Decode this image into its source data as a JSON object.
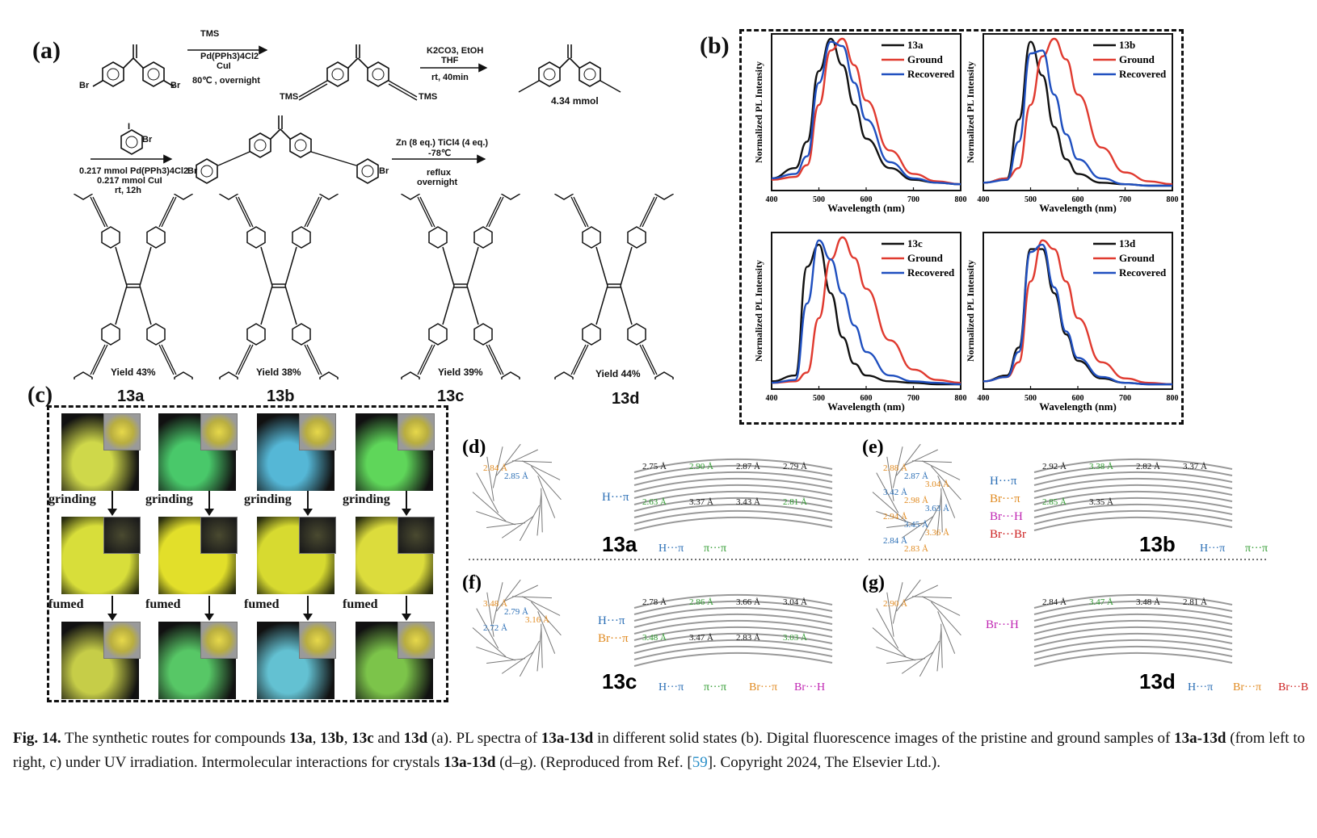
{
  "panel_a": {
    "label": "(a)",
    "step1": {
      "reagent_top": "TMS",
      "reagent": "Pd(PPh3)4Cl2",
      "reagent2": "CuI",
      "cond": "80℃ ,  overnight"
    },
    "step2": {
      "reagent": "K2CO3, EtOH",
      "reagent2": "THF",
      "cond": "rt, 40min"
    },
    "product_amount": "4.34 mmol",
    "step3": {
      "reagent1": "0.217 mmol Pd(PPh3)4Cl2",
      "reagent2": "0.217 mmol CuI",
      "cond": "rt, 12h"
    },
    "step4": {
      "reagent": "Zn (8 eq.) TiCl4 (4 eq.)",
      "temp": "-78℃",
      "cond1": "reflux",
      "cond2": "overnight"
    },
    "br": "Br",
    "tms": "TMS",
    "iodo": "I",
    "compounds": [
      {
        "name": "13a",
        "yield": "Yield 43%"
      },
      {
        "name": "13b",
        "yield": "Yield 38%"
      },
      {
        "name": "13c",
        "yield": "Yield 39%"
      },
      {
        "name": "13d",
        "yield": "Yield 44%"
      }
    ]
  },
  "panel_b": {
    "label": "(b)",
    "ylabel": "Normalized PL Intensity",
    "xlabel": "Wavelength (nm)",
    "xticks": [
      "400",
      "500",
      "600",
      "700",
      "800"
    ],
    "legend_ground": "Ground",
    "legend_recovered": "Recovered",
    "colors": {
      "pristine": "#111111",
      "ground": "#e03a2f",
      "recovered": "#1f4fbf"
    }
  },
  "chart_data": [
    {
      "type": "line",
      "title": "",
      "legend_name": "13a",
      "xlabel": "Wavelength (nm)",
      "ylabel": "Normalized PL Intensity",
      "xlim": [
        400,
        800
      ],
      "ylim": [
        0,
        1
      ],
      "x": [
        400,
        450,
        475,
        500,
        525,
        550,
        575,
        600,
        650,
        700,
        750,
        800
      ],
      "series": [
        {
          "name": "13a",
          "values": [
            0.05,
            0.12,
            0.3,
            0.78,
            1.0,
            0.82,
            0.55,
            0.32,
            0.12,
            0.04,
            0.02,
            0.01
          ]
        },
        {
          "name": "Ground",
          "values": [
            0.04,
            0.06,
            0.14,
            0.55,
            0.92,
            1.0,
            0.82,
            0.58,
            0.24,
            0.08,
            0.03,
            0.01
          ]
        },
        {
          "name": "Recovered",
          "values": [
            0.05,
            0.08,
            0.2,
            0.7,
            0.98,
            0.95,
            0.7,
            0.45,
            0.16,
            0.05,
            0.02,
            0.01
          ]
        }
      ]
    },
    {
      "type": "line",
      "title": "",
      "legend_name": "13b",
      "xlabel": "Wavelength (nm)",
      "ylabel": "Normalized PL Intensity",
      "xlim": [
        400,
        800
      ],
      "ylim": [
        0,
        1
      ],
      "x": [
        400,
        450,
        475,
        500,
        525,
        550,
        575,
        600,
        650,
        700,
        750,
        800
      ],
      "series": [
        {
          "name": "13b",
          "values": [
            0.02,
            0.05,
            0.45,
            0.98,
            0.75,
            0.4,
            0.18,
            0.08,
            0.02,
            0.01,
            0.0,
            0.0
          ]
        },
        {
          "name": "Ground",
          "values": [
            0.02,
            0.05,
            0.12,
            0.55,
            0.88,
            1.0,
            0.86,
            0.62,
            0.26,
            0.09,
            0.03,
            0.01
          ]
        },
        {
          "name": "Recovered",
          "values": [
            0.02,
            0.04,
            0.3,
            0.9,
            0.92,
            0.62,
            0.35,
            0.18,
            0.05,
            0.01,
            0.0,
            0.0
          ]
        }
      ]
    },
    {
      "type": "line",
      "title": "",
      "legend_name": "13c",
      "xlabel": "Wavelength (nm)",
      "ylabel": "Normalized PL Intensity",
      "xlim": [
        400,
        800
      ],
      "ylim": [
        0,
        1
      ],
      "x": [
        400,
        450,
        475,
        500,
        525,
        550,
        575,
        600,
        650,
        700,
        750,
        800
      ],
      "series": [
        {
          "name": "13c",
          "values": [
            0.02,
            0.06,
            0.8,
            0.95,
            0.62,
            0.32,
            0.14,
            0.06,
            0.02,
            0.01,
            0.0,
            0.0
          ]
        },
        {
          "name": "Ground",
          "values": [
            0.01,
            0.02,
            0.08,
            0.45,
            0.85,
            1.0,
            0.86,
            0.65,
            0.3,
            0.1,
            0.03,
            0.01
          ]
        },
        {
          "name": "Recovered",
          "values": [
            0.01,
            0.03,
            0.55,
            0.98,
            0.85,
            0.62,
            0.4,
            0.22,
            0.06,
            0.02,
            0.01,
            0.0
          ]
        }
      ]
    },
    {
      "type": "line",
      "title": "",
      "legend_name": "13d",
      "xlabel": "Wavelength (nm)",
      "ylabel": "Normalized PL Intensity",
      "xlim": [
        400,
        800
      ],
      "ylim": [
        0,
        1
      ],
      "x": [
        400,
        450,
        475,
        500,
        525,
        550,
        575,
        600,
        650,
        700,
        750,
        800
      ],
      "series": [
        {
          "name": "13d",
          "values": [
            0.02,
            0.06,
            0.25,
            0.92,
            0.92,
            0.62,
            0.34,
            0.16,
            0.04,
            0.01,
            0.0,
            0.0
          ]
        },
        {
          "name": "Ground",
          "values": [
            0.02,
            0.05,
            0.15,
            0.7,
            0.98,
            0.92,
            0.7,
            0.45,
            0.15,
            0.04,
            0.01,
            0.0
          ]
        },
        {
          "name": "Recovered",
          "values": [
            0.02,
            0.05,
            0.22,
            0.9,
            0.95,
            0.66,
            0.36,
            0.18,
            0.05,
            0.01,
            0.0,
            0.0
          ]
        }
      ]
    }
  ],
  "panel_c": {
    "label": "(c)",
    "grinding": "grinding",
    "fumed": "fumed",
    "colors": {
      "pristine": [
        "#cfd84a",
        "#49c86a",
        "#55b7d6",
        "#5fd65a"
      ],
      "ground": [
        "#d8de3a",
        "#e2df2a",
        "#d7da30",
        "#dcdc3c"
      ],
      "fumed": [
        "#c6cd48",
        "#57c766",
        "#63c1d2",
        "#7cc44a"
      ]
    }
  },
  "panel_d": {
    "label": "(d)",
    "compound": "13a",
    "distances_left": [
      "2.84 Å",
      "2.85 Å"
    ],
    "distances_right": [
      "2.75 Å",
      "2.90 Å",
      "2.87 Å",
      "2.79 Å",
      "2.63 Å",
      "3.37 Å",
      "3.43 Å",
      "2.81 Å"
    ],
    "legend_left": [
      "H···π"
    ],
    "legend_bottom": [
      "H···π",
      "π···π"
    ]
  },
  "panel_e": {
    "label": "(e)",
    "compound": "13b",
    "distances_left": [
      "2.88 Å",
      "2.87 Å",
      "3.04 Å",
      "3.42 Å",
      "2.98 Å",
      "3.63 Å",
      "2.94 Å",
      "3.45 Å",
      "3.36 Å",
      "2.84 Å",
      "2.83 Å"
    ],
    "distances_right": [
      "2.92 Å",
      "3.38 Å",
      "2.82 Å",
      "3.37 Å",
      "2.85 Å",
      "3.35 Å"
    ],
    "legend_side": [
      "H···π",
      "Br···π",
      "Br···H",
      "Br···Br"
    ],
    "legend_bottom": [
      "H···π",
      "π···π"
    ]
  },
  "panel_f": {
    "label": "(f)",
    "compound": "13c",
    "distances_left": [
      "3.48 Å",
      "2.79 Å",
      "3.16 Å",
      "2.72 Å"
    ],
    "distances_right": [
      "2.78 Å",
      "2.86 Å",
      "3.66 Å",
      "3.04 Å",
      "3.48 Å",
      "3.47 Å",
      "2.83 Å",
      "3.03 Å"
    ],
    "legend_side": [
      "H···π",
      "Br···π"
    ],
    "legend_bottom": [
      "H···π",
      "π···π",
      "Br···π",
      "Br···H"
    ]
  },
  "panel_g": {
    "label": "(g)",
    "compound": "13d",
    "distances_left": [
      "2.90 Å"
    ],
    "distances_right": [
      "2.84 Å",
      "3.47 Å",
      "3.48 Å",
      "2.81 Å"
    ],
    "legend_side": [
      "Br···H"
    ],
    "legend_bottom": [
      "H···π",
      "Br···π",
      "Br···Br"
    ]
  },
  "legend_colors": {
    "h_pi": "#2a6eb5",
    "pi_pi": "#2e9a2e",
    "br_pi": "#e08a20",
    "br_h": "#c026b3",
    "br_br": "#cc1f1f"
  },
  "caption": {
    "fig": "Fig. 14.",
    "t1": "  The synthetic routes for compounds ",
    "c1": "13a",
    "s1": ", ",
    "c2": "13b",
    "s2": ", ",
    "c3": "13c",
    "s3": " and ",
    "c4": "13d",
    "t2": " (a). PL spectra of ",
    "c5": "13a-13d",
    "t3": " in different solid states (b). Digital fluorescence images of the pristine and ground samples of ",
    "c6": "13a-13d",
    "t4": " (from left to right, c) under UV irradiation. Intermolecular interactions for crystals ",
    "c7": "13a-13d",
    "t5": " (d–g). (Reproduced from Ref. [",
    "ref": "59",
    "t6": "]. Copyright 2024, The Elsevier Ltd.)."
  }
}
